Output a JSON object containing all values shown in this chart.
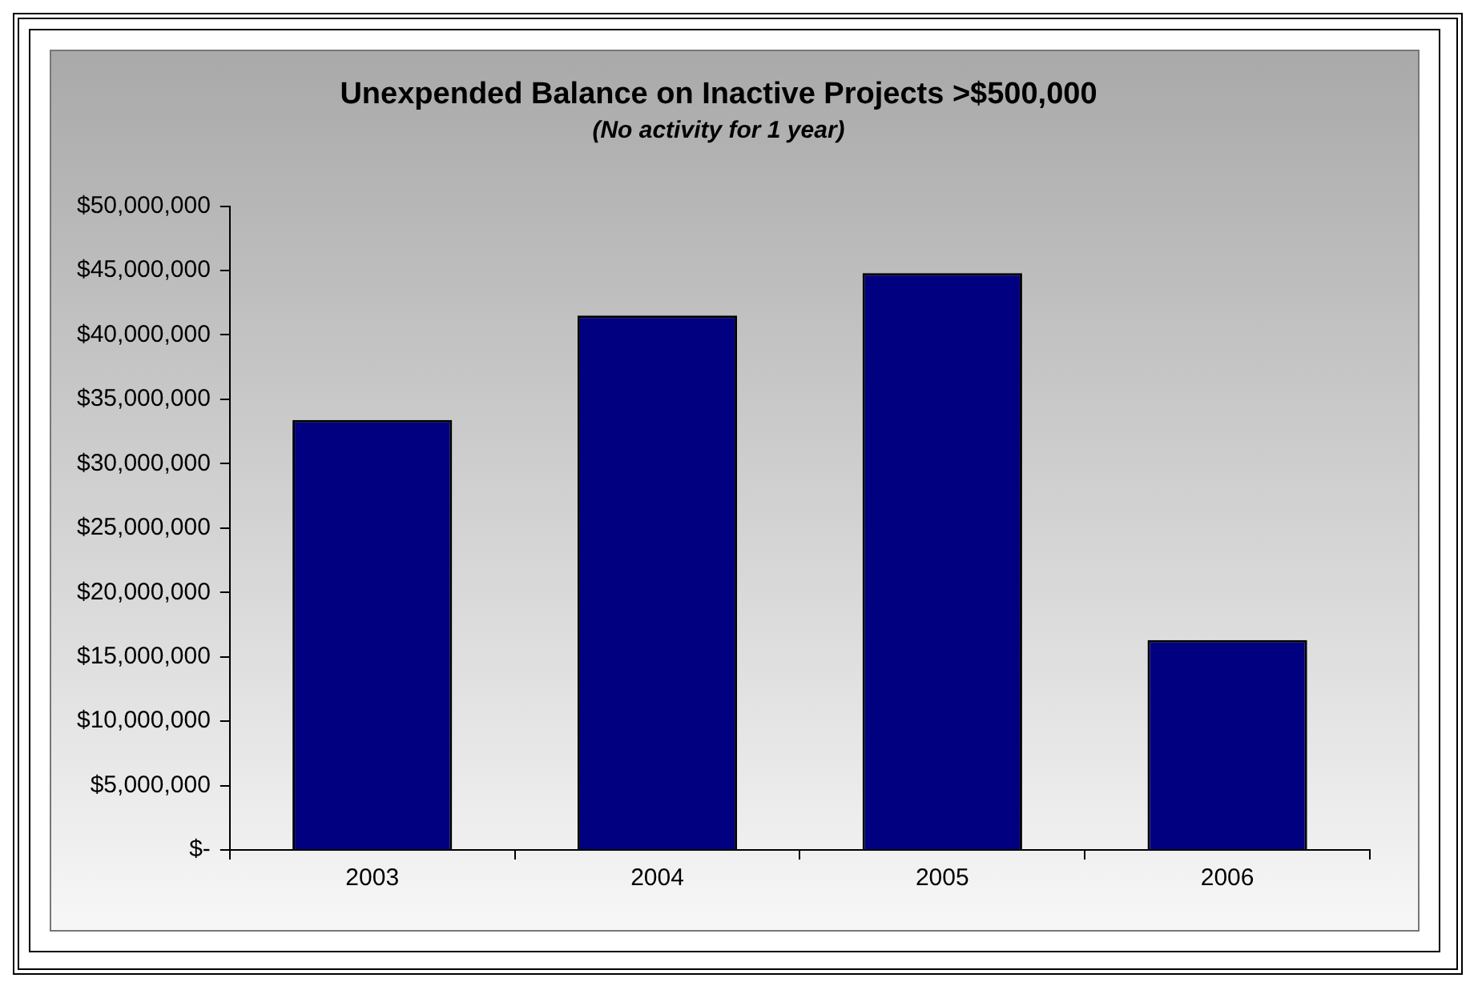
{
  "chart_data": {
    "type": "bar",
    "title": "Unexpended Balance on Inactive Projects >$500,000",
    "subtitle": "(No activity for 1 year)",
    "categories": [
      "2003",
      "2004",
      "2005",
      "2006"
    ],
    "values": [
      33400000,
      41500000,
      44800000,
      16300000
    ],
    "color": "#000080",
    "ylim": [
      0,
      50000000
    ],
    "yticks": [
      {
        "value": 0,
        "label": "$-"
      },
      {
        "value": 5000000,
        "label": "$5,000,000"
      },
      {
        "value": 10000000,
        "label": "$10,000,000"
      },
      {
        "value": 15000000,
        "label": "$15,000,000"
      },
      {
        "value": 20000000,
        "label": "$20,000,000"
      },
      {
        "value": 25000000,
        "label": "$25,000,000"
      },
      {
        "value": 30000000,
        "label": "$30,000,000"
      },
      {
        "value": 35000000,
        "label": "$35,000,000"
      },
      {
        "value": 40000000,
        "label": "$40,000,000"
      },
      {
        "value": 45000000,
        "label": "$45,000,000"
      },
      {
        "value": 50000000,
        "label": "$50,000,000"
      }
    ],
    "grid": false,
    "legend": false
  }
}
